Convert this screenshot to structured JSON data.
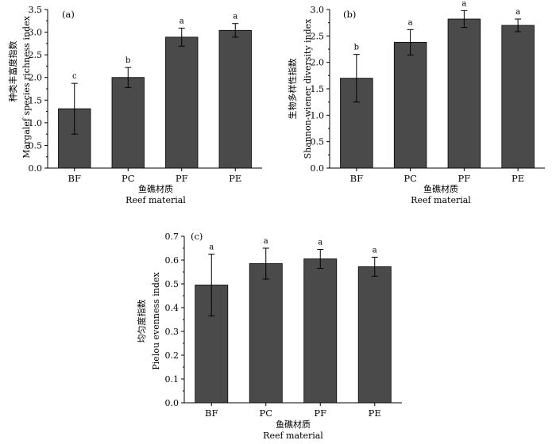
{
  "chart_data": [
    {
      "type": "bar",
      "panel": "(a)",
      "categories": [
        "BF",
        "PC",
        "PF",
        "PE"
      ],
      "values": [
        1.31,
        2.0,
        2.89,
        3.04
      ],
      "errors": [
        0.56,
        0.22,
        0.2,
        0.15
      ],
      "significance": [
        "c",
        "b",
        "a",
        "a"
      ],
      "ylabel_cn": "种类丰富度指数",
      "ylabel_en": "Margalef species richness index",
      "xlabel_cn": "鱼礁材质",
      "xlabel_en": "Reef material",
      "ylim": [
        0,
        3.5
      ],
      "yticks": [
        "0.0",
        "0.5",
        "1.0",
        "1.5",
        "2.0",
        "2.5",
        "3.0",
        "3.5"
      ]
    },
    {
      "type": "bar",
      "panel": "(b)",
      "categories": [
        "BF",
        "PC",
        "PF",
        "PE"
      ],
      "values": [
        1.7,
        2.38,
        2.82,
        2.7
      ],
      "errors": [
        0.45,
        0.24,
        0.16,
        0.12
      ],
      "significance": [
        "b",
        "a",
        "a",
        "a"
      ],
      "ylabel_cn": "生物多样性指数",
      "ylabel_en": "Shannon-wiener diversity index",
      "xlabel_cn": "鱼礁材质",
      "xlabel_en": "Reef material",
      "ylim": [
        0,
        3.0
      ],
      "yticks": [
        "0.0",
        "0.5",
        "1.0",
        "1.5",
        "2.0",
        "2.5",
        "3.0"
      ]
    },
    {
      "type": "bar",
      "panel": "(c)",
      "categories": [
        "BF",
        "PC",
        "PF",
        "PE"
      ],
      "values": [
        0.495,
        0.585,
        0.605,
        0.572
      ],
      "errors": [
        0.13,
        0.065,
        0.04,
        0.04
      ],
      "significance": [
        "a",
        "a",
        "a",
        "a"
      ],
      "ylabel_cn": "均匀度指数",
      "ylabel_en": "Pielou evenness index",
      "xlabel_cn": "鱼礁材质",
      "xlabel_en": "Reef material",
      "ylim": [
        0,
        0.7
      ],
      "yticks": [
        "0.0",
        "0.1",
        "0.2",
        "0.3",
        "0.4",
        "0.5",
        "0.6",
        "0.7"
      ]
    }
  ]
}
